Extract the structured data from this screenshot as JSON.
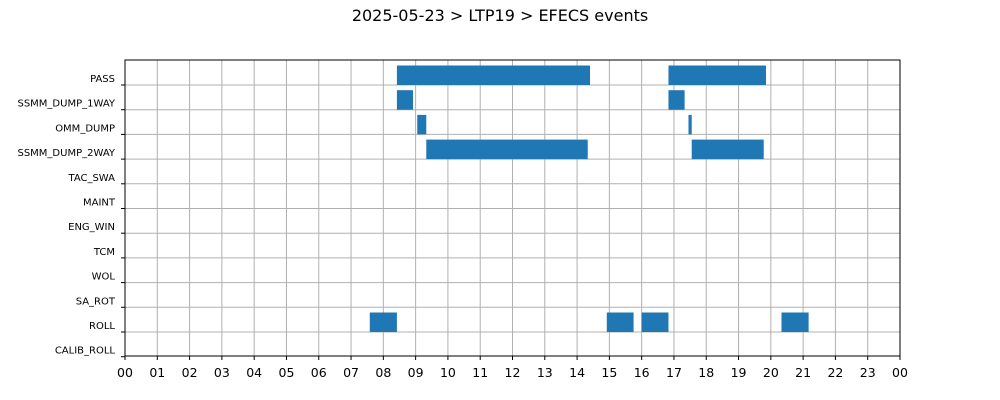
{
  "chart_data": {
    "type": "gantt",
    "title": "2025-05-23 > LTP19 > EFECS events",
    "xlabel": "",
    "ylabel": "",
    "xlim": [
      0,
      24
    ],
    "grid": true,
    "bar_color": "#1f77b4",
    "x_tick_labels": [
      "00",
      "01",
      "02",
      "03",
      "04",
      "05",
      "06",
      "07",
      "08",
      "09",
      "10",
      "11",
      "12",
      "13",
      "14",
      "15",
      "16",
      "17",
      "18",
      "19",
      "20",
      "21",
      "22",
      "23",
      "00"
    ],
    "categories": [
      "PASS",
      "SSMM_DUMP_1WAY",
      "OMM_DUMP",
      "SSMM_DUMP_2WAY",
      "TAC_SWA",
      "MAINT",
      "ENG_WIN",
      "TCM",
      "WOL",
      "SA_ROT",
      "ROLL",
      "CALIB_ROLL"
    ],
    "events": [
      {
        "category": "PASS",
        "start": 8.42,
        "end": 14.4
      },
      {
        "category": "PASS",
        "start": 16.83,
        "end": 19.85
      },
      {
        "category": "SSMM_DUMP_1WAY",
        "start": 8.42,
        "end": 8.92
      },
      {
        "category": "SSMM_DUMP_1WAY",
        "start": 16.83,
        "end": 17.33
      },
      {
        "category": "OMM_DUMP",
        "start": 9.05,
        "end": 9.33
      },
      {
        "category": "OMM_DUMP",
        "start": 17.45,
        "end": 17.55
      },
      {
        "category": "SSMM_DUMP_2WAY",
        "start": 9.33,
        "end": 14.33
      },
      {
        "category": "SSMM_DUMP_2WAY",
        "start": 17.55,
        "end": 19.78
      },
      {
        "category": "ROLL",
        "start": 7.58,
        "end": 8.42
      },
      {
        "category": "ROLL",
        "start": 14.92,
        "end": 15.75
      },
      {
        "category": "ROLL",
        "start": 16.0,
        "end": 16.83
      },
      {
        "category": "ROLL",
        "start": 20.33,
        "end": 21.17
      }
    ]
  }
}
